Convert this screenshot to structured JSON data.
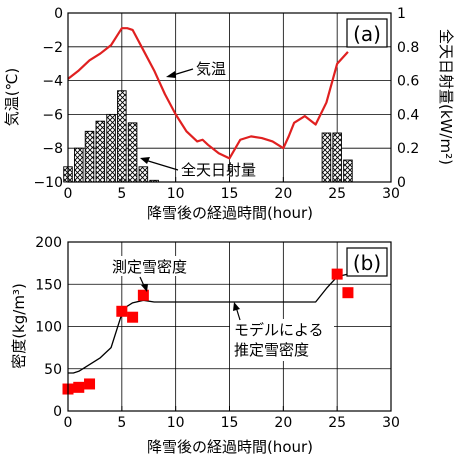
{
  "chart_data": [
    {
      "panel": "(a)",
      "type": "line+bar",
      "xlabel": "降雪後の経過時間(hour)",
      "ylabel_left": "気温(℃)",
      "ylabel_right": "全天日射量(kW/m²)",
      "xlim": [
        0,
        30
      ],
      "ylim_left": [
        -10,
        0
      ],
      "ylim_right": [
        0,
        1
      ],
      "xticks": [
        "0",
        "5",
        "10",
        "15",
        "20",
        "25",
        "30"
      ],
      "yticks_left": [
        "0",
        "−2",
        "−4",
        "−6",
        "−8",
        "−10"
      ],
      "yticks_right": [
        "1",
        "0.8",
        "0.6",
        "0.4",
        "0.2",
        "0"
      ],
      "grid": true,
      "series": [
        {
          "name": "気温",
          "kind": "line",
          "axis": "left",
          "color": "#e02020",
          "x": [
            0,
            1,
            2,
            3,
            4,
            4.5,
            5,
            5.5,
            6,
            6.5,
            7,
            8,
            9,
            10,
            11,
            12,
            12.5,
            13,
            14,
            15,
            16,
            17,
            18,
            19,
            20,
            20.5,
            21,
            22,
            23,
            24,
            25,
            26
          ],
          "y": [
            -3.9,
            -3.4,
            -2.8,
            -2.4,
            -1.9,
            -1.4,
            -0.9,
            -0.9,
            -1.0,
            -1.6,
            -2.2,
            -3.4,
            -4.8,
            -6.0,
            -7.0,
            -7.6,
            -7.5,
            -7.8,
            -8.3,
            -8.6,
            -7.5,
            -7.3,
            -7.4,
            -7.6,
            -8.0,
            -7.3,
            -6.5,
            -6.1,
            -6.6,
            -5.3,
            -3.0,
            -2.3
          ]
        },
        {
          "name": "全天日射量",
          "kind": "bar",
          "axis": "right",
          "pattern": "crosshatch",
          "x": [
            0,
            1,
            2,
            3,
            4,
            5,
            6,
            7,
            8,
            24,
            25,
            26
          ],
          "y": [
            0.09,
            0.2,
            0.3,
            0.36,
            0.4,
            0.54,
            0.35,
            0.09,
            0.01,
            0.29,
            0.29,
            0.13
          ]
        }
      ],
      "annotations": [
        "気温",
        "全天日射量"
      ]
    },
    {
      "panel": "(b)",
      "type": "scatter+line",
      "xlabel": "降雪後の経過時間(hour)",
      "ylabel": "密度(kg/m³)",
      "xlim": [
        0,
        30
      ],
      "ylim": [
        0,
        200
      ],
      "xticks": [
        "0",
        "5",
        "10",
        "15",
        "20",
        "25",
        "30"
      ],
      "yticks": [
        "0",
        "50",
        "100",
        "150",
        "200"
      ],
      "grid": true,
      "series": [
        {
          "name": "測定雪密度",
          "kind": "scatter",
          "marker": "square",
          "color": "#ff0000",
          "x": [
            0,
            1,
            2,
            5,
            6,
            7,
            25,
            26
          ],
          "y": [
            26,
            28,
            32,
            118,
            111,
            137,
            162,
            140
          ]
        },
        {
          "name": "モデルによる推定雪密度",
          "kind": "line",
          "color": "#000000",
          "x": [
            0,
            0.5,
            1,
            2,
            3,
            4,
            5,
            5.5,
            6,
            7,
            8,
            9,
            12,
            15,
            18,
            21,
            23,
            24,
            25,
            26
          ],
          "y": [
            45,
            45,
            47,
            55,
            63,
            75,
            115,
            124,
            128,
            131,
            129,
            129,
            129,
            129,
            129,
            129,
            129,
            145,
            159,
            162
          ]
        }
      ],
      "annotations": [
        "測定雪密度",
        "モデルによる",
        "推定雪密度"
      ]
    }
  ],
  "colors": {
    "temperature_line": "#e02020",
    "measured_marker": "#ff0000",
    "model_line": "#000000"
  }
}
